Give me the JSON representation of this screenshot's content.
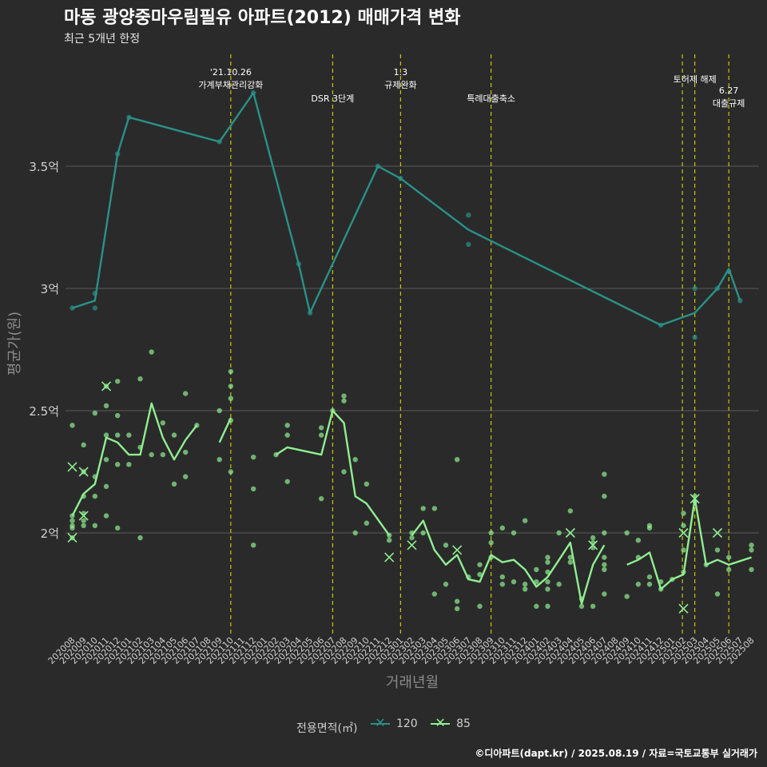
{
  "title": "마동 광양중마우림필유 아파트(2012) 매매가격 변화",
  "subtitle": "최근 5개년 한정",
  "caption": "©디아파트(dapt.kr) / 2025.08.19 / 자료=국토교통부 실거래가",
  "colors": {
    "background": "#2a2a2b",
    "grid": "#5a5a5a",
    "s120": "#2a9187",
    "s85": "#90ee90",
    "event": "#e5e500"
  },
  "legend": {
    "title": "전용면적(㎡)",
    "items": [
      {
        "label": "120",
        "color": "#2a9187"
      },
      {
        "label": "85",
        "color": "#90ee90"
      }
    ]
  },
  "chart_data": {
    "type": "line",
    "xlabel": "거래년월",
    "ylabel": "평균가(원)",
    "ylim": [
      1.6,
      4.0
    ],
    "yticks": [
      {
        "v": 2.0,
        "label": "2억"
      },
      {
        "v": 2.5,
        "label": "2.5억"
      },
      {
        "v": 3.0,
        "label": "3억"
      },
      {
        "v": 3.5,
        "label": "3.5억"
      }
    ],
    "categories": [
      "202008",
      "202009",
      "202010",
      "202011",
      "202012",
      "202101",
      "202102",
      "202103",
      "202104",
      "202105",
      "202106",
      "202107",
      "202108",
      "202109",
      "202110",
      "202111",
      "202112",
      "202201",
      "202202",
      "202203",
      "202204",
      "202205",
      "202206",
      "202207",
      "202208",
      "202209",
      "202210",
      "202211",
      "202212",
      "202301",
      "202302",
      "202303",
      "202304",
      "202305",
      "202306",
      "202307",
      "202308",
      "202309",
      "202310",
      "202311",
      "202312",
      "202401",
      "202402",
      "202403",
      "202404",
      "202405",
      "202406",
      "202407",
      "202408",
      "202409",
      "202410",
      "202411",
      "202412",
      "202501",
      "202502",
      "202503",
      "202504",
      "202505",
      "202506",
      "202507",
      "202508"
    ],
    "events": [
      {
        "x": 14.0,
        "label": [
          "'21.10.26",
          "가계부채관리강화"
        ]
      },
      {
        "x": 23.0,
        "label": [
          "DSR 3단계"
        ]
      },
      {
        "x": 29.0,
        "label": [
          "1.3",
          "규제완화"
        ]
      },
      {
        "x": 37.0,
        "label": [
          "특례대출축소"
        ]
      },
      {
        "x": 53.9,
        "label": []
      },
      {
        "x": 55.0,
        "label": [
          "토허제 해제"
        ]
      },
      {
        "x": 58.0,
        "label": [
          "6.27",
          "대출규제"
        ]
      }
    ],
    "series": [
      {
        "name": "120",
        "color": "#2a9187",
        "line": [
          [
            0,
            2.92
          ],
          [
            2,
            2.95
          ],
          [
            4,
            3.55
          ],
          [
            5,
            3.7
          ],
          [
            13,
            3.6
          ],
          [
            16,
            3.8
          ],
          [
            20,
            3.1
          ],
          [
            21,
            2.9
          ],
          [
            27,
            3.5
          ],
          [
            29,
            3.45
          ],
          [
            35,
            3.24
          ],
          [
            52,
            2.85
          ],
          [
            55,
            2.9
          ],
          [
            57,
            3.0
          ],
          [
            58,
            3.08
          ],
          [
            59,
            2.95
          ]
        ],
        "points": [
          [
            0,
            2.92
          ],
          [
            2,
            2.92
          ],
          [
            2,
            2.98
          ],
          [
            4,
            3.55
          ],
          [
            5,
            3.7
          ],
          [
            13,
            3.6
          ],
          [
            16,
            3.8
          ],
          [
            20,
            3.1
          ],
          [
            21,
            2.9
          ],
          [
            27,
            3.5
          ],
          [
            29,
            3.45
          ],
          [
            35,
            3.3
          ],
          [
            35,
            3.18
          ],
          [
            52,
            2.85
          ],
          [
            55,
            2.8
          ],
          [
            55,
            3.0
          ],
          [
            57,
            3.0
          ],
          [
            58,
            3.07
          ],
          [
            59,
            2.95
          ]
        ],
        "crosses": []
      },
      {
        "name": "85",
        "color": "#90ee90",
        "line": [
          [
            [
              0,
              2.07
            ],
            [
              1,
              2.16
            ],
            [
              2,
              2.2
            ],
            [
              3,
              2.39
            ],
            [
              4,
              2.37
            ],
            [
              5,
              2.32
            ],
            [
              6,
              2.32
            ],
            [
              7,
              2.53
            ],
            [
              8,
              2.39
            ],
            [
              9,
              2.3
            ],
            [
              10,
              2.38
            ],
            [
              11,
              2.44
            ]
          ],
          [
            [
              13,
              2.37
            ],
            [
              14,
              2.47
            ]
          ],
          [
            [
              18,
              2.32
            ],
            [
              19,
              2.35
            ],
            [
              22,
              2.32
            ],
            [
              23,
              2.5
            ],
            [
              24,
              2.45
            ],
            [
              25,
              2.15
            ],
            [
              26,
              2.12
            ],
            [
              28,
              1.99
            ]
          ],
          [
            [
              30,
              1.99
            ],
            [
              31,
              2.05
            ],
            [
              32,
              1.93
            ],
            [
              33,
              1.87
            ],
            [
              34,
              1.91
            ],
            [
              35,
              1.81
            ],
            [
              36,
              1.8
            ],
            [
              37,
              1.91
            ],
            [
              38,
              1.88
            ],
            [
              39,
              1.89
            ],
            [
              40,
              1.85
            ],
            [
              41,
              1.78
            ],
            [
              42,
              1.82
            ],
            [
              43,
              1.89
            ],
            [
              44,
              1.96
            ],
            [
              45,
              1.71
            ],
            [
              46,
              1.87
            ],
            [
              47,
              1.95
            ]
          ],
          [
            [
              49,
              1.87
            ],
            [
              50,
              1.89
            ],
            [
              51,
              1.92
            ],
            [
              52,
              1.77
            ],
            [
              53,
              1.81
            ],
            [
              54,
              1.83
            ],
            [
              55,
              2.14
            ],
            [
              56,
              1.87
            ],
            [
              57,
              1.89
            ],
            [
              58,
              1.87
            ],
            [
              60,
              1.9
            ]
          ]
        ],
        "points": [
          [
            0,
            2.44
          ],
          [
            0,
            2.07
          ],
          [
            0,
            2.05
          ],
          [
            0,
            2.03
          ],
          [
            0,
            2.02
          ],
          [
            0,
            1.98
          ],
          [
            1,
            2.36
          ],
          [
            1,
            2.25
          ],
          [
            1,
            2.15
          ],
          [
            1,
            2.08
          ],
          [
            1,
            2.05
          ],
          [
            1,
            2.03
          ],
          [
            2,
            2.49
          ],
          [
            2,
            2.23
          ],
          [
            2,
            2.15
          ],
          [
            2,
            2.03
          ],
          [
            3,
            2.6
          ],
          [
            3,
            2.52
          ],
          [
            3,
            2.4
          ],
          [
            3,
            2.3
          ],
          [
            3,
            2.19
          ],
          [
            3,
            2.07
          ],
          [
            4,
            2.62
          ],
          [
            4,
            2.48
          ],
          [
            4,
            2.4
          ],
          [
            4,
            2.28
          ],
          [
            4,
            2.02
          ],
          [
            5,
            2.4
          ],
          [
            5,
            2.28
          ],
          [
            6,
            2.63
          ],
          [
            6,
            2.35
          ],
          [
            6,
            1.98
          ],
          [
            7,
            2.74
          ],
          [
            7,
            2.32
          ],
          [
            8,
            2.45
          ],
          [
            8,
            2.32
          ],
          [
            9,
            2.4
          ],
          [
            9,
            2.2
          ],
          [
            10,
            2.57
          ],
          [
            10,
            2.33
          ],
          [
            10,
            2.23
          ],
          [
            11,
            2.44
          ],
          [
            13,
            2.5
          ],
          [
            13,
            2.3
          ],
          [
            14,
            2.66
          ],
          [
            14,
            2.6
          ],
          [
            14,
            2.55
          ],
          [
            14,
            2.46
          ],
          [
            14,
            2.25
          ],
          [
            16,
            2.31
          ],
          [
            16,
            2.18
          ],
          [
            16,
            1.95
          ],
          [
            18,
            2.32
          ],
          [
            19,
            2.44
          ],
          [
            19,
            2.4
          ],
          [
            19,
            2.21
          ],
          [
            22,
            2.43
          ],
          [
            22,
            2.4
          ],
          [
            22,
            2.14
          ],
          [
            23,
            2.5
          ],
          [
            24,
            2.56
          ],
          [
            24,
            2.54
          ],
          [
            24,
            2.25
          ],
          [
            25,
            2.3
          ],
          [
            25,
            2.0
          ],
          [
            26,
            2.2
          ],
          [
            26,
            2.04
          ],
          [
            28,
            1.99
          ],
          [
            28,
            1.97
          ],
          [
            30,
            2.0
          ],
          [
            30,
            1.98
          ],
          [
            31,
            2.1
          ],
          [
            31,
            2.0
          ],
          [
            32,
            2.1
          ],
          [
            32,
            1.75
          ],
          [
            33,
            1.95
          ],
          [
            33,
            1.79
          ],
          [
            34,
            2.3
          ],
          [
            34,
            1.72
          ],
          [
            34,
            1.69
          ],
          [
            35,
            1.82
          ],
          [
            36,
            1.87
          ],
          [
            36,
            1.83
          ],
          [
            36,
            1.7
          ],
          [
            37,
            2.0
          ],
          [
            37,
            1.96
          ],
          [
            37,
            1.9
          ],
          [
            38,
            2.02
          ],
          [
            38,
            1.82
          ],
          [
            38,
            1.79
          ],
          [
            39,
            2.0
          ],
          [
            39,
            1.8
          ],
          [
            40,
            2.05
          ],
          [
            40,
            1.79
          ],
          [
            40,
            1.77
          ],
          [
            41,
            1.85
          ],
          [
            41,
            1.8
          ],
          [
            41,
            1.7
          ],
          [
            42,
            1.9
          ],
          [
            42,
            1.88
          ],
          [
            42,
            1.84
          ],
          [
            42,
            1.8
          ],
          [
            42,
            1.77
          ],
          [
            42,
            1.7
          ],
          [
            43,
            2.0
          ],
          [
            43,
            1.79
          ],
          [
            44,
            2.09
          ],
          [
            44,
            1.9
          ],
          [
            44,
            1.88
          ],
          [
            45,
            1.73
          ],
          [
            45,
            1.7
          ],
          [
            46,
            1.98
          ],
          [
            46,
            1.96
          ],
          [
            46,
            1.94
          ],
          [
            46,
            1.7
          ],
          [
            47,
            2.24
          ],
          [
            47,
            2.15
          ],
          [
            47,
            2.0
          ],
          [
            47,
            1.9
          ],
          [
            47,
            1.87
          ],
          [
            47,
            1.85
          ],
          [
            47,
            1.75
          ],
          [
            49,
            2.0
          ],
          [
            49,
            1.74
          ],
          [
            50,
            1.97
          ],
          [
            50,
            1.9
          ],
          [
            50,
            1.79
          ],
          [
            51,
            2.03
          ],
          [
            51,
            2.02
          ],
          [
            51,
            1.82
          ],
          [
            51,
            1.79
          ],
          [
            52,
            1.8
          ],
          [
            52,
            1.77
          ],
          [
            53,
            1.81
          ],
          [
            54,
            2.08
          ],
          [
            54,
            2.03
          ],
          [
            54,
            1.93
          ],
          [
            54,
            1.84
          ],
          [
            55,
            2.15
          ],
          [
            55,
            2.13
          ],
          [
            56,
            1.87
          ],
          [
            57,
            1.93
          ],
          [
            57,
            1.75
          ],
          [
            58,
            1.9
          ],
          [
            58,
            1.85
          ],
          [
            60,
            1.95
          ],
          [
            60,
            1.93
          ],
          [
            60,
            1.85
          ]
        ],
        "crosses": [
          [
            0,
            2.27
          ],
          [
            1,
            2.25
          ],
          [
            0,
            1.98
          ],
          [
            1,
            2.07
          ],
          [
            3,
            2.6
          ],
          [
            28,
            1.9
          ],
          [
            30,
            1.95
          ],
          [
            34,
            1.93
          ],
          [
            44,
            2.0
          ],
          [
            46,
            1.95
          ],
          [
            54,
            2.0
          ],
          [
            54,
            1.69
          ],
          [
            55,
            2.14
          ],
          [
            57,
            2.0
          ]
        ]
      }
    ]
  }
}
